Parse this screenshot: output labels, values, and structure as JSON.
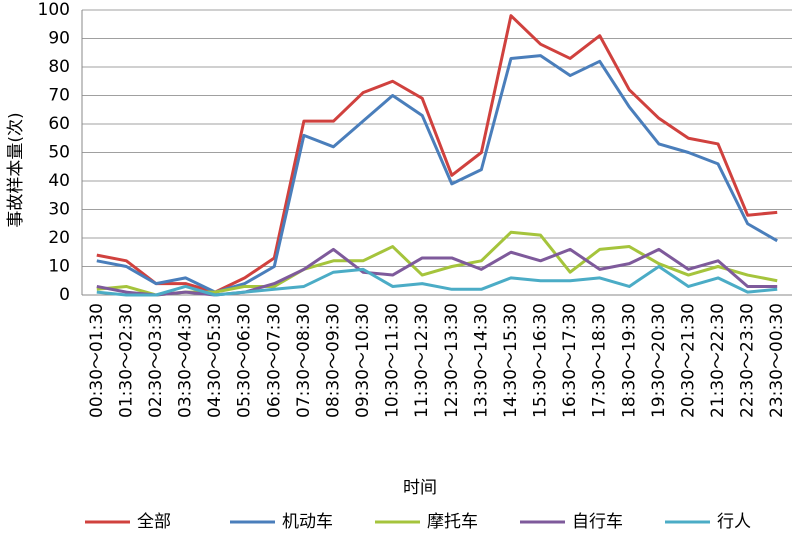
{
  "chart_data": {
    "type": "line",
    "x_label": "时间",
    "y_label": "事故样本量(次)",
    "categories": [
      "00:30～01:30",
      "01:30～02:30",
      "02:30～03:30",
      "03:30～04:30",
      "04:30～05:30",
      "05:30～06:30",
      "06:30～07:30",
      "07:30～08:30",
      "08:30～09:30",
      "09:30～10:30",
      "10:30～11:30",
      "11:30～12:30",
      "12:30～13:30",
      "13:30～14:30",
      "14:30～15:30",
      "15:30～16:30",
      "16:30～17:30",
      "17:30～18:30",
      "18:30～19:30",
      "19:30～20:30",
      "20:30～21:30",
      "21:30～22:30",
      "22:30～23:30",
      "23:30～00:30"
    ],
    "series": [
      {
        "name": "全部",
        "color": "#d0413e",
        "values": [
          14,
          12,
          4,
          4,
          1,
          6,
          13,
          61,
          61,
          71,
          75,
          69,
          42,
          50,
          98,
          88,
          83,
          91,
          72,
          62,
          55,
          53,
          28,
          29
        ]
      },
      {
        "name": "机动车",
        "color": "#4a7ebb",
        "values": [
          12,
          10,
          4,
          6,
          1,
          4,
          10,
          56,
          52,
          61,
          70,
          63,
          39,
          44,
          83,
          84,
          77,
          82,
          66,
          53,
          50,
          46,
          25,
          19
        ]
      },
      {
        "name": "摩托车",
        "color": "#a5c43c",
        "values": [
          2,
          3,
          0,
          1,
          1,
          3,
          3,
          9,
          12,
          12,
          17,
          7,
          10,
          12,
          22,
          21,
          8,
          16,
          17,
          11,
          7,
          10,
          7,
          5
        ]
      },
      {
        "name": "自行车",
        "color": "#7e5a9b",
        "values": [
          3,
          1,
          0,
          1,
          0,
          1,
          4,
          9,
          16,
          8,
          7,
          13,
          13,
          9,
          15,
          12,
          16,
          9,
          11,
          16,
          9,
          12,
          3,
          3
        ]
      },
      {
        "name": "行人",
        "color": "#4bacc6",
        "values": [
          1,
          0,
          0,
          3,
          0,
          1,
          2,
          3,
          8,
          9,
          3,
          4,
          2,
          2,
          6,
          5,
          5,
          6,
          3,
          10,
          3,
          6,
          1,
          2
        ]
      }
    ],
    "ylim": [
      0,
      100
    ],
    "yticks": [
      0,
      10,
      20,
      30,
      40,
      50,
      60,
      70,
      80,
      90,
      100
    ],
    "grid": true,
    "legend": "bottom"
  }
}
